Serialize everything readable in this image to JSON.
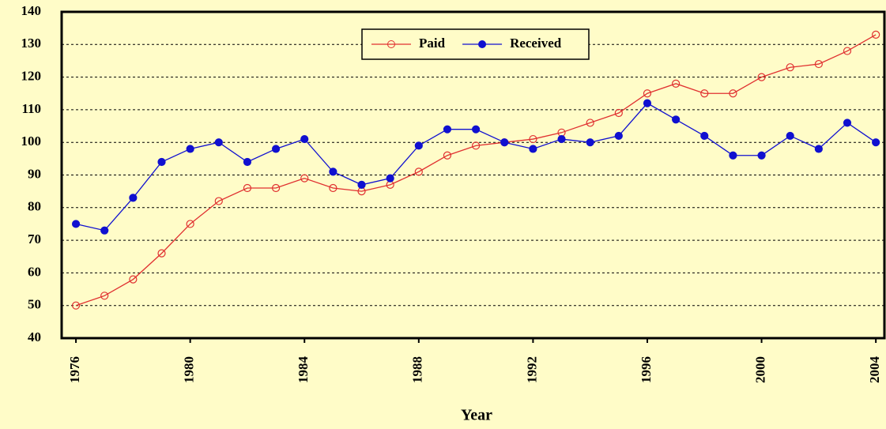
{
  "chart_data": {
    "type": "line",
    "x_label": "Year",
    "x": [
      1976,
      1977,
      1978,
      1979,
      1980,
      1981,
      1982,
      1983,
      1984,
      1985,
      1986,
      1987,
      1988,
      1989,
      1990,
      1991,
      1992,
      1993,
      1994,
      1995,
      1996,
      1997,
      1998,
      1999,
      2000,
      2001,
      2002,
      2003,
      2004
    ],
    "series": [
      {
        "name": "Paid",
        "color": "#e03030",
        "marker": "open",
        "values": [
          50,
          53,
          58,
          66,
          75,
          82,
          86,
          86,
          89,
          86,
          85,
          87,
          91,
          96,
          99,
          100,
          101,
          103,
          106,
          109,
          115,
          118,
          115,
          115,
          120,
          123,
          124,
          128,
          133
        ]
      },
      {
        "name": "Received",
        "color": "#1010d0",
        "marker": "filled",
        "values": [
          75,
          73,
          83,
          94,
          98,
          100,
          94,
          98,
          101,
          91,
          87,
          89,
          99,
          104,
          104,
          100,
          98,
          101,
          100,
          102,
          112,
          107,
          102,
          96,
          96,
          102,
          98,
          106,
          100
        ]
      }
    ],
    "xlim": [
      1975.5,
      2004.3
    ],
    "xticks": [
      1976,
      1980,
      1984,
      1988,
      1992,
      1996,
      2000,
      2004
    ],
    "ylim": [
      40,
      140
    ],
    "yticks": [
      40,
      50,
      60,
      70,
      80,
      90,
      100,
      110,
      120,
      130,
      140
    ],
    "grid": true,
    "legend": "top"
  }
}
